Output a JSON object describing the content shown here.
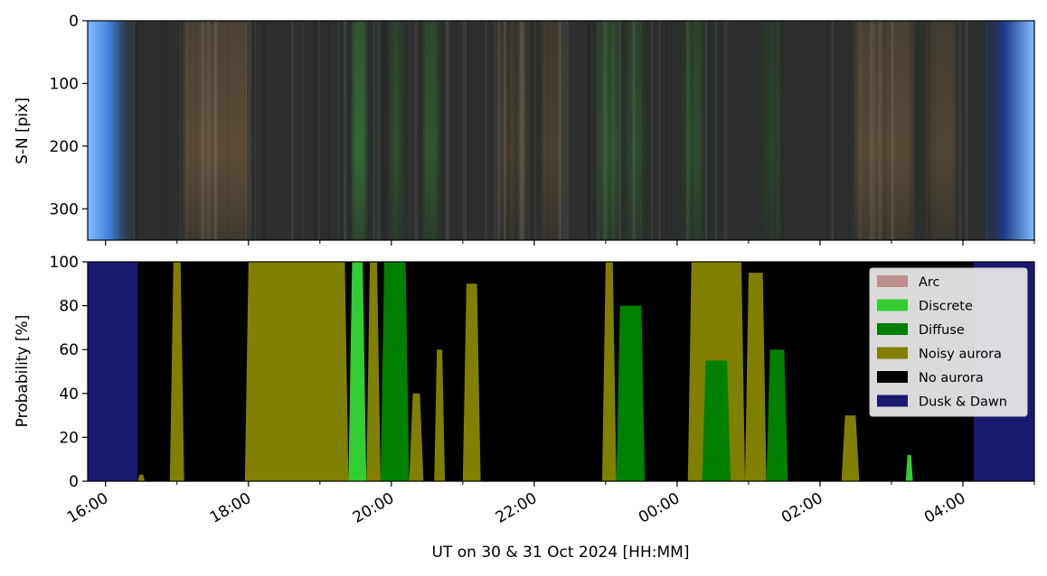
{
  "chart_data": [
    {
      "type": "image",
      "description_free": true,
      "ylabel": "S-N [pix]",
      "yticks": [
        0,
        100,
        200,
        300
      ],
      "ylim": [
        350,
        0
      ],
      "x_range_hours": [
        -8.3,
        5.0
      ],
      "colors": {
        "sky_blue": "#7fbfff",
        "deep_blue": "#1e3a8a",
        "dark_base": "#2b2e2c",
        "warm": "#8a6a44",
        "green": "#3fbf3f"
      },
      "twilight_hours": {
        "dusk_end": -7.55,
        "dawn_start": 4.15
      },
      "green_bands": [
        {
          "start": -4.55,
          "end": -4.35,
          "strength": 0.9
        },
        {
          "start": -4.0,
          "end": -3.85,
          "strength": 0.5
        },
        {
          "start": -3.55,
          "end": -3.35,
          "strength": 0.6
        },
        {
          "start": -1.1,
          "end": -0.8,
          "strength": 0.5
        },
        {
          "start": -0.7,
          "end": -0.45,
          "strength": 0.4
        },
        {
          "start": 0.1,
          "end": 0.35,
          "strength": 0.45
        },
        {
          "start": 1.2,
          "end": 1.45,
          "strength": 0.3
        }
      ],
      "warm_bands": [
        {
          "start": -6.9,
          "end": -6.0,
          "strength": 0.6
        },
        {
          "start": -2.5,
          "end": -2.1,
          "strength": 0.35
        },
        {
          "start": -1.9,
          "end": -1.6,
          "strength": 0.4
        },
        {
          "start": 2.5,
          "end": 3.3,
          "strength": 0.55
        },
        {
          "start": 3.5,
          "end": 3.9,
          "strength": 0.45
        }
      ]
    },
    {
      "type": "area",
      "ylabel": "Probability [%]",
      "xlabel": "UT on 30 & 31 Oct 2024 [HH:MM]",
      "ylim": [
        0,
        100
      ],
      "yticks": [
        0,
        20,
        40,
        60,
        80,
        100
      ],
      "xlim_hours": [
        -8.25,
        5.0
      ],
      "xticks": [
        {
          "h": -8,
          "label": "16:00"
        },
        {
          "h": -6,
          "label": "18:00"
        },
        {
          "h": -4,
          "label": "20:00"
        },
        {
          "h": -2,
          "label": "22:00"
        },
        {
          "h": 0,
          "label": "00:00"
        },
        {
          "h": 2,
          "label": "02:00"
        },
        {
          "h": 4,
          "label": "04:00"
        }
      ],
      "minor_xticks_hours": [
        -7,
        -5,
        -3,
        -1,
        1,
        3,
        5
      ],
      "legend_position": "top-right",
      "series": [
        {
          "name": "Arc",
          "color": "#bc8f8f"
        },
        {
          "name": "Discrete",
          "color": "#32cd32"
        },
        {
          "name": "Diffuse",
          "color": "#008000"
        },
        {
          "name": "Noisy aurora",
          "color": "#808000"
        },
        {
          "name": "No aurora",
          "color": "#000000"
        },
        {
          "name": "Dusk & Dawn",
          "color": "#191970"
        }
      ],
      "segments": [
        {
          "start": -8.25,
          "end": -7.55,
          "class": "Dusk & Dawn",
          "level": 100
        },
        {
          "start": -7.55,
          "end": -7.45,
          "class": "Noisy aurora",
          "level": 3
        },
        {
          "start": -7.1,
          "end": -6.9,
          "class": "Noisy aurora",
          "level": 100
        },
        {
          "start": -6.05,
          "end": -4.6,
          "class": "Noisy aurora",
          "level": 100
        },
        {
          "start": -4.6,
          "end": -4.35,
          "class": "Discrete",
          "level": 100
        },
        {
          "start": -4.35,
          "end": -4.15,
          "class": "Noisy aurora",
          "level": 100
        },
        {
          "start": -4.15,
          "end": -3.75,
          "class": "Diffuse",
          "level": 100
        },
        {
          "start": -3.75,
          "end": -3.55,
          "class": "Noisy aurora",
          "level": 40
        },
        {
          "start": -3.4,
          "end": -3.25,
          "class": "Noisy aurora",
          "level": 60
        },
        {
          "start": -3.0,
          "end": -2.75,
          "class": "Noisy aurora",
          "level": 90
        },
        {
          "start": -1.05,
          "end": -0.85,
          "class": "Noisy aurora",
          "level": 100
        },
        {
          "start": -0.85,
          "end": -0.45,
          "class": "Diffuse",
          "level": 80
        },
        {
          "start": -0.45,
          "end": -0.45,
          "class": "Noisy aurora",
          "level": 100
        },
        {
          "start": 0.15,
          "end": 0.95,
          "class": "Noisy aurora",
          "level": 100
        },
        {
          "start": 0.35,
          "end": 0.75,
          "class": "Diffuse",
          "level": 55
        },
        {
          "start": 0.95,
          "end": 1.25,
          "class": "Noisy aurora",
          "level": 95
        },
        {
          "start": 1.25,
          "end": 1.55,
          "class": "Diffuse",
          "level": 60
        },
        {
          "start": 2.3,
          "end": 2.55,
          "class": "Noisy aurora",
          "level": 30
        },
        {
          "start": 3.2,
          "end": 3.3,
          "class": "Discrete",
          "level": 12
        },
        {
          "start": 4.15,
          "end": 5.0,
          "class": "Dusk & Dawn",
          "level": 100
        }
      ]
    }
  ]
}
